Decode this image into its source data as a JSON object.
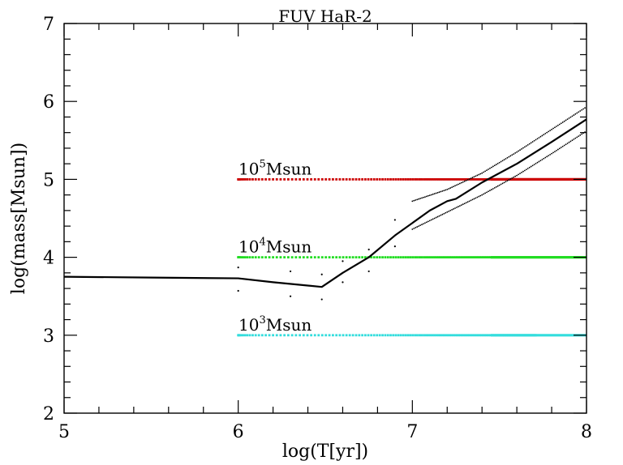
{
  "chart_data": {
    "type": "line",
    "title": "FUV HaR-2",
    "xlabel": "log(T[yr])",
    "ylabel": "log(mass[Msun])",
    "xlim": [
      5,
      8
    ],
    "ylim": [
      2,
      7
    ],
    "grid": false,
    "x_ticks": [
      "5",
      "6",
      "7",
      "8"
    ],
    "y_ticks": [
      "2",
      "3",
      "4",
      "5",
      "6",
      "7"
    ],
    "main_curve": {
      "x": [
        5.0,
        5.5,
        6.0,
        6.2,
        6.48,
        6.6,
        6.75,
        6.9,
        7.1,
        7.2,
        7.25,
        7.4,
        7.6,
        7.8,
        8.0
      ],
      "y": [
        3.75,
        3.74,
        3.73,
        3.68,
        3.62,
        3.8,
        4.0,
        4.28,
        4.6,
        4.72,
        4.75,
        4.96,
        5.2,
        5.48,
        5.77
      ]
    },
    "upper_bound": {
      "x": [
        7.0,
        7.2,
        7.4,
        7.6,
        7.8,
        8.0
      ],
      "y": [
        4.72,
        4.87,
        5.08,
        5.35,
        5.64,
        5.93
      ]
    },
    "lower_bound": {
      "x": [
        7.0,
        7.2,
        7.4,
        7.6,
        7.8,
        8.0
      ],
      "y": [
        4.36,
        4.58,
        4.8,
        5.05,
        5.33,
        5.62
      ]
    },
    "scattered_points": {
      "x": [
        6.0,
        6.0,
        6.3,
        6.3,
        6.48,
        6.48,
        6.6,
        6.6,
        6.75,
        6.75,
        6.9,
        6.9
      ],
      "y": [
        3.87,
        3.57,
        3.82,
        3.5,
        3.78,
        3.46,
        3.95,
        3.68,
        4.1,
        3.82,
        4.48,
        4.14
      ]
    },
    "reference_lines": [
      {
        "value": 5,
        "label_base": "10",
        "label_exp": "5",
        "label_unit": "Msun",
        "color": "#cc0000"
      },
      {
        "value": 4,
        "label_base": "10",
        "label_exp": "4",
        "label_unit": "Msun",
        "color": "#22dd22"
      },
      {
        "value": 3,
        "label_base": "10",
        "label_exp": "3",
        "label_unit": "Msun",
        "color": "#33dddd"
      }
    ]
  }
}
